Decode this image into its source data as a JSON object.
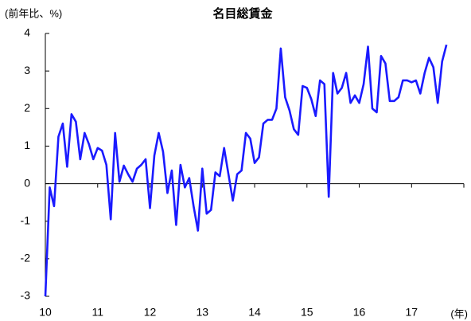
{
  "chart_data": {
    "type": "line",
    "title": "名目総賃金",
    "y_label": "(前年比、%)",
    "x_label": "(年)",
    "categories": [
      "10",
      null,
      null,
      null,
      null,
      null,
      null,
      null,
      null,
      null,
      null,
      null,
      "11",
      null,
      null,
      null,
      null,
      null,
      null,
      null,
      null,
      null,
      null,
      null,
      "12",
      null,
      null,
      null,
      null,
      null,
      null,
      null,
      null,
      null,
      null,
      null,
      "13",
      null,
      null,
      null,
      null,
      null,
      null,
      null,
      null,
      null,
      null,
      null,
      "14",
      null,
      null,
      null,
      null,
      null,
      null,
      null,
      null,
      null,
      null,
      null,
      "15",
      null,
      null,
      null,
      null,
      null,
      null,
      null,
      null,
      null,
      null,
      null,
      "16",
      null,
      null,
      null,
      null,
      null,
      null,
      null,
      null,
      null,
      null,
      null,
      "17",
      null,
      null,
      null,
      null,
      null,
      null,
      null,
      null
    ],
    "values": [
      -3,
      -0.1,
      -0.6,
      1.25,
      1.6,
      0.45,
      1.85,
      1.65,
      0.65,
      1.35,
      1.05,
      0.65,
      0.95,
      0.88,
      0.5,
      -0.95,
      1.35,
      0.05,
      0.48,
      0.25,
      0.05,
      0.4,
      0.5,
      0.65,
      -0.65,
      0.75,
      1.35,
      0.85,
      -0.25,
      0.35,
      -1.1,
      0.5,
      -0.1,
      0.15,
      -0.6,
      -1.25,
      0.4,
      -0.8,
      -0.7,
      0.3,
      0.2,
      0.95,
      0.25,
      -0.45,
      0.25,
      0.35,
      1.35,
      1.2,
      0.55,
      0.7,
      1.6,
      1.7,
      1.7,
      2.0,
      3.6,
      2.3,
      1.95,
      1.45,
      1.3,
      2.6,
      2.55,
      2.25,
      1.8,
      2.75,
      2.65,
      -0.35,
      2.95,
      2.4,
      2.55,
      2.95,
      2.15,
      2.35,
      2.15,
      2.65,
      3.65,
      2.0,
      1.9,
      3.4,
      3.2,
      2.2,
      2.2,
      2.3,
      2.75,
      2.75,
      2.7,
      2.75,
      2.4,
      2.95,
      3.35,
      3.1,
      2.15,
      3.25,
      3.7
    ],
    "color": "#1a1aff",
    "ylim": [
      -3,
      4
    ],
    "yticks": [
      -3,
      -2,
      -1,
      0,
      1,
      2,
      3,
      4
    ]
  }
}
